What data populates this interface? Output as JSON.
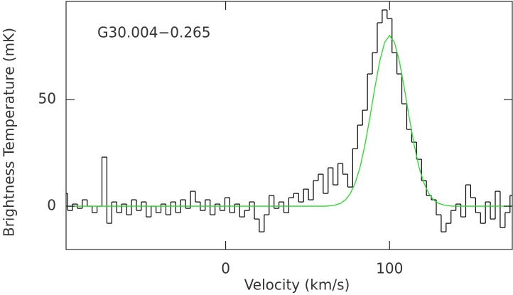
{
  "chart_data": {
    "type": "line",
    "annotation": "G30.004−0.265",
    "x_label": "Velocity (km/s)",
    "y_label": "Brightness Temperature (mK)",
    "x": [
      -98,
      -95,
      -92,
      -89,
      -86,
      -83,
      -80,
      -77,
      -74,
      -71,
      -68,
      -65,
      -62,
      -59,
      -56,
      -53,
      -50,
      -47,
      -44,
      -41,
      -38,
      -35,
      -32,
      -29,
      -26,
      -23,
      -20,
      -17,
      -14,
      -11,
      -8,
      -5,
      -2,
      1,
      4,
      7,
      10,
      13,
      16,
      19,
      22,
      25,
      28,
      31,
      34,
      37,
      40,
      43,
      46,
      49,
      52,
      55,
      58,
      61,
      64,
      67,
      70,
      73,
      76,
      79,
      82,
      85,
      88,
      91,
      94,
      97,
      100,
      103,
      106,
      109,
      112,
      115,
      118,
      121,
      124,
      127,
      130,
      133,
      136,
      139,
      142,
      145,
      148,
      151,
      154,
      157,
      160,
      163,
      166,
      169,
      172,
      175
    ],
    "series": [
      {
        "color": "#000000",
        "style": "step",
        "values": [
          6,
          -2,
          1,
          -1,
          3,
          0,
          -3,
          0,
          23,
          -8,
          2,
          -3,
          1,
          -4,
          3,
          -2,
          2,
          -5,
          0,
          -3,
          1,
          -4,
          2,
          -3,
          3,
          -1,
          7,
          2,
          -2,
          3,
          -4,
          1,
          -2,
          4,
          -3,
          1,
          -5,
          -2,
          2,
          -6,
          -12,
          -4,
          5,
          -1,
          2,
          -3,
          4,
          6,
          2,
          8,
          3,
          12,
          15,
          6,
          18,
          10,
          20,
          15,
          9,
          27,
          38,
          45,
          62,
          72,
          86,
          92,
          88,
          72,
          62,
          48,
          36,
          30,
          22,
          12,
          5,
          3,
          -4,
          -12,
          -8,
          -2,
          1,
          -5,
          10,
          4,
          -3,
          -8,
          2,
          -6,
          7,
          -10,
          -3,
          5
        ]
      },
      {
        "color": "#22dd22",
        "style": "line",
        "values": [
          0,
          0,
          0,
          0,
          0,
          0,
          0,
          0,
          0,
          0,
          0,
          0,
          0,
          0,
          0,
          0,
          0,
          0,
          0,
          0,
          0,
          0,
          0,
          0,
          0,
          0,
          0,
          0,
          0,
          0,
          0,
          0,
          0,
          0,
          0,
          0,
          0,
          0,
          0,
          0,
          0,
          0,
          0,
          0,
          0,
          0,
          0,
          0,
          0,
          0,
          0,
          0,
          0,
          0,
          0.2,
          0.6,
          1.3,
          2.9,
          5.8,
          10.8,
          18.3,
          28.8,
          41.6,
          55.4,
          68.0,
          76.8,
          80,
          76.8,
          68.0,
          55.4,
          41.6,
          28.8,
          18.3,
          10.8,
          5.8,
          2.9,
          1.3,
          0.6,
          0.2,
          0,
          0,
          0,
          0,
          0,
          0,
          0,
          0,
          0,
          0,
          0,
          0,
          0
        ]
      }
    ],
    "xlim": [
      -97.4,
      174.9
    ],
    "ylim": [
      -20.3,
      96
    ],
    "xticks": [
      0,
      100
    ],
    "yticks": [
      0,
      50
    ]
  }
}
